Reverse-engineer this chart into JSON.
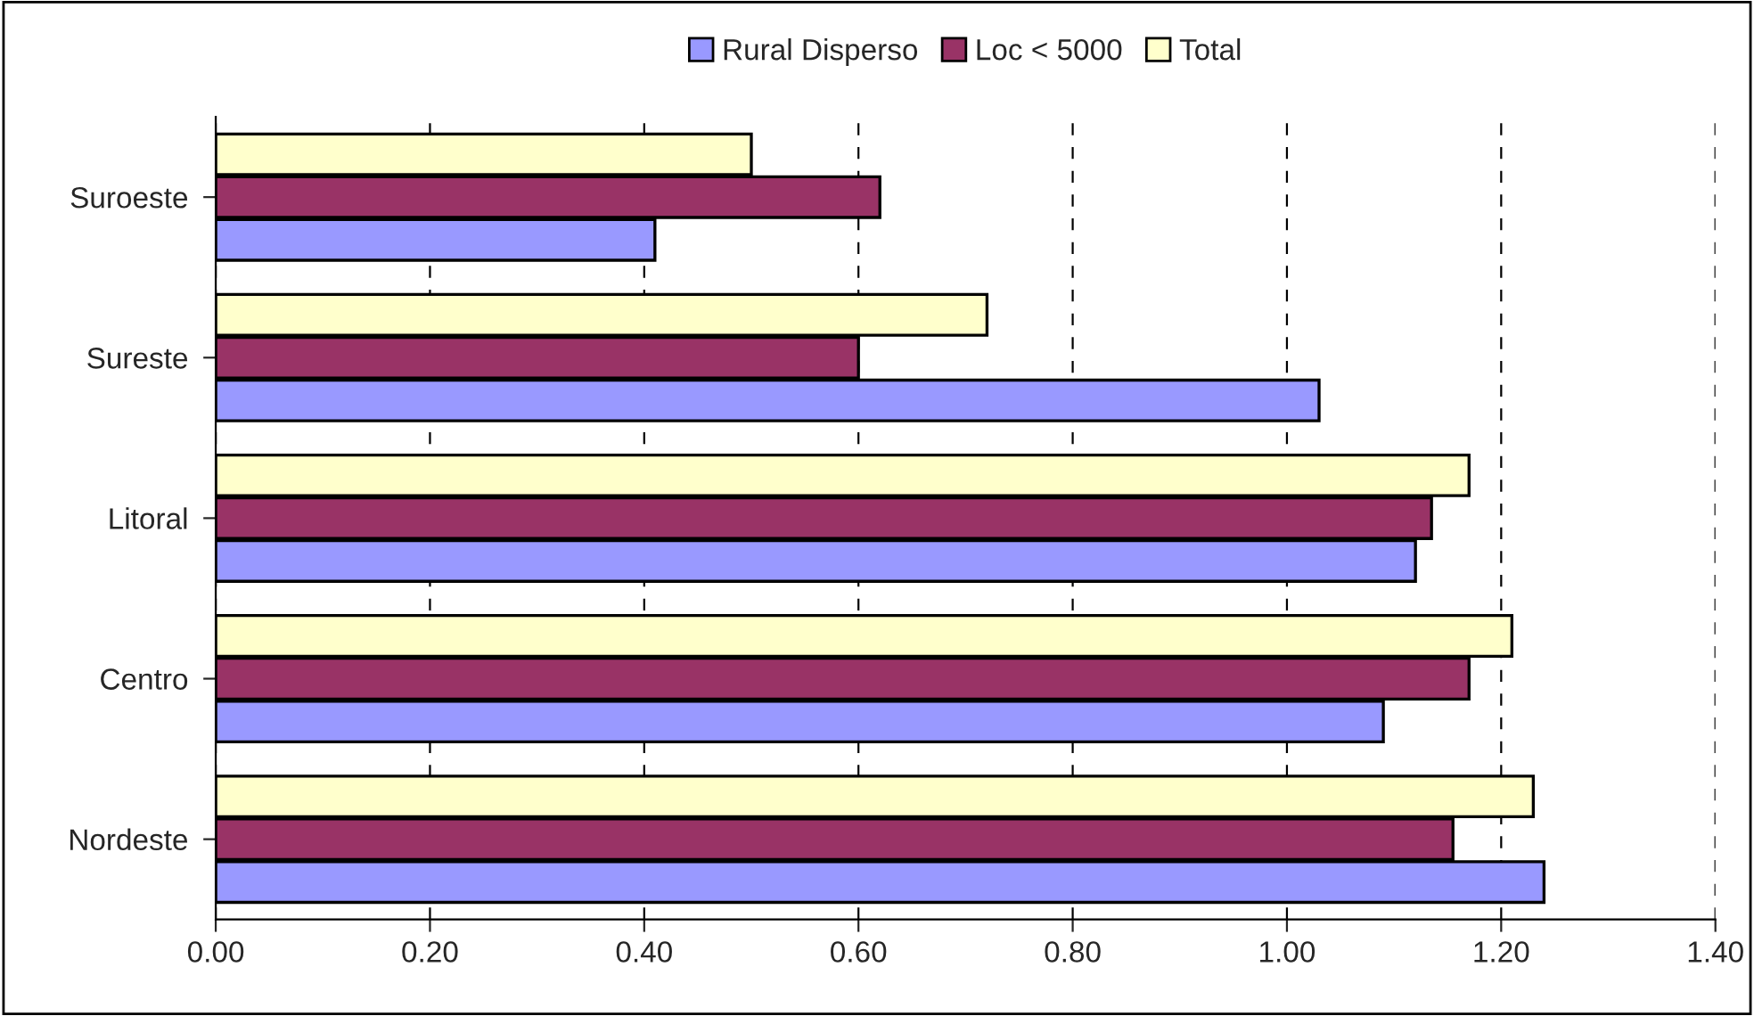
{
  "chart_data": {
    "type": "bar",
    "orientation": "horizontal",
    "categories": [
      "Suroeste",
      "Sureste",
      "Litoral",
      "Centro",
      "Nordeste"
    ],
    "series": [
      {
        "name": "Rural Disperso",
        "color": "#9999ff",
        "values": [
          0.41,
          1.03,
          1.12,
          1.09,
          1.24
        ]
      },
      {
        "name": "Loc < 5000",
        "color": "#993366",
        "values": [
          0.62,
          0.6,
          1.135,
          1.17,
          1.155
        ]
      },
      {
        "name": "Total",
        "color": "#ffffcc",
        "values": [
          0.5,
          0.72,
          1.17,
          1.21,
          1.23
        ]
      }
    ],
    "xlim": [
      0,
      1.4
    ],
    "xticks": [
      {
        "value": 0,
        "label": "0.00"
      },
      {
        "value": 0.2,
        "label": "0.20"
      },
      {
        "value": 0.4,
        "label": "0.40"
      },
      {
        "value": 0.6,
        "label": "0.60"
      },
      {
        "value": 0.8,
        "label": "0.80"
      },
      {
        "value": 1.0,
        "label": "1.00"
      },
      {
        "value": 1.2,
        "label": "1.20"
      },
      {
        "value": 1.4,
        "label": "1.40"
      }
    ],
    "grid": "x",
    "legend": "top"
  }
}
